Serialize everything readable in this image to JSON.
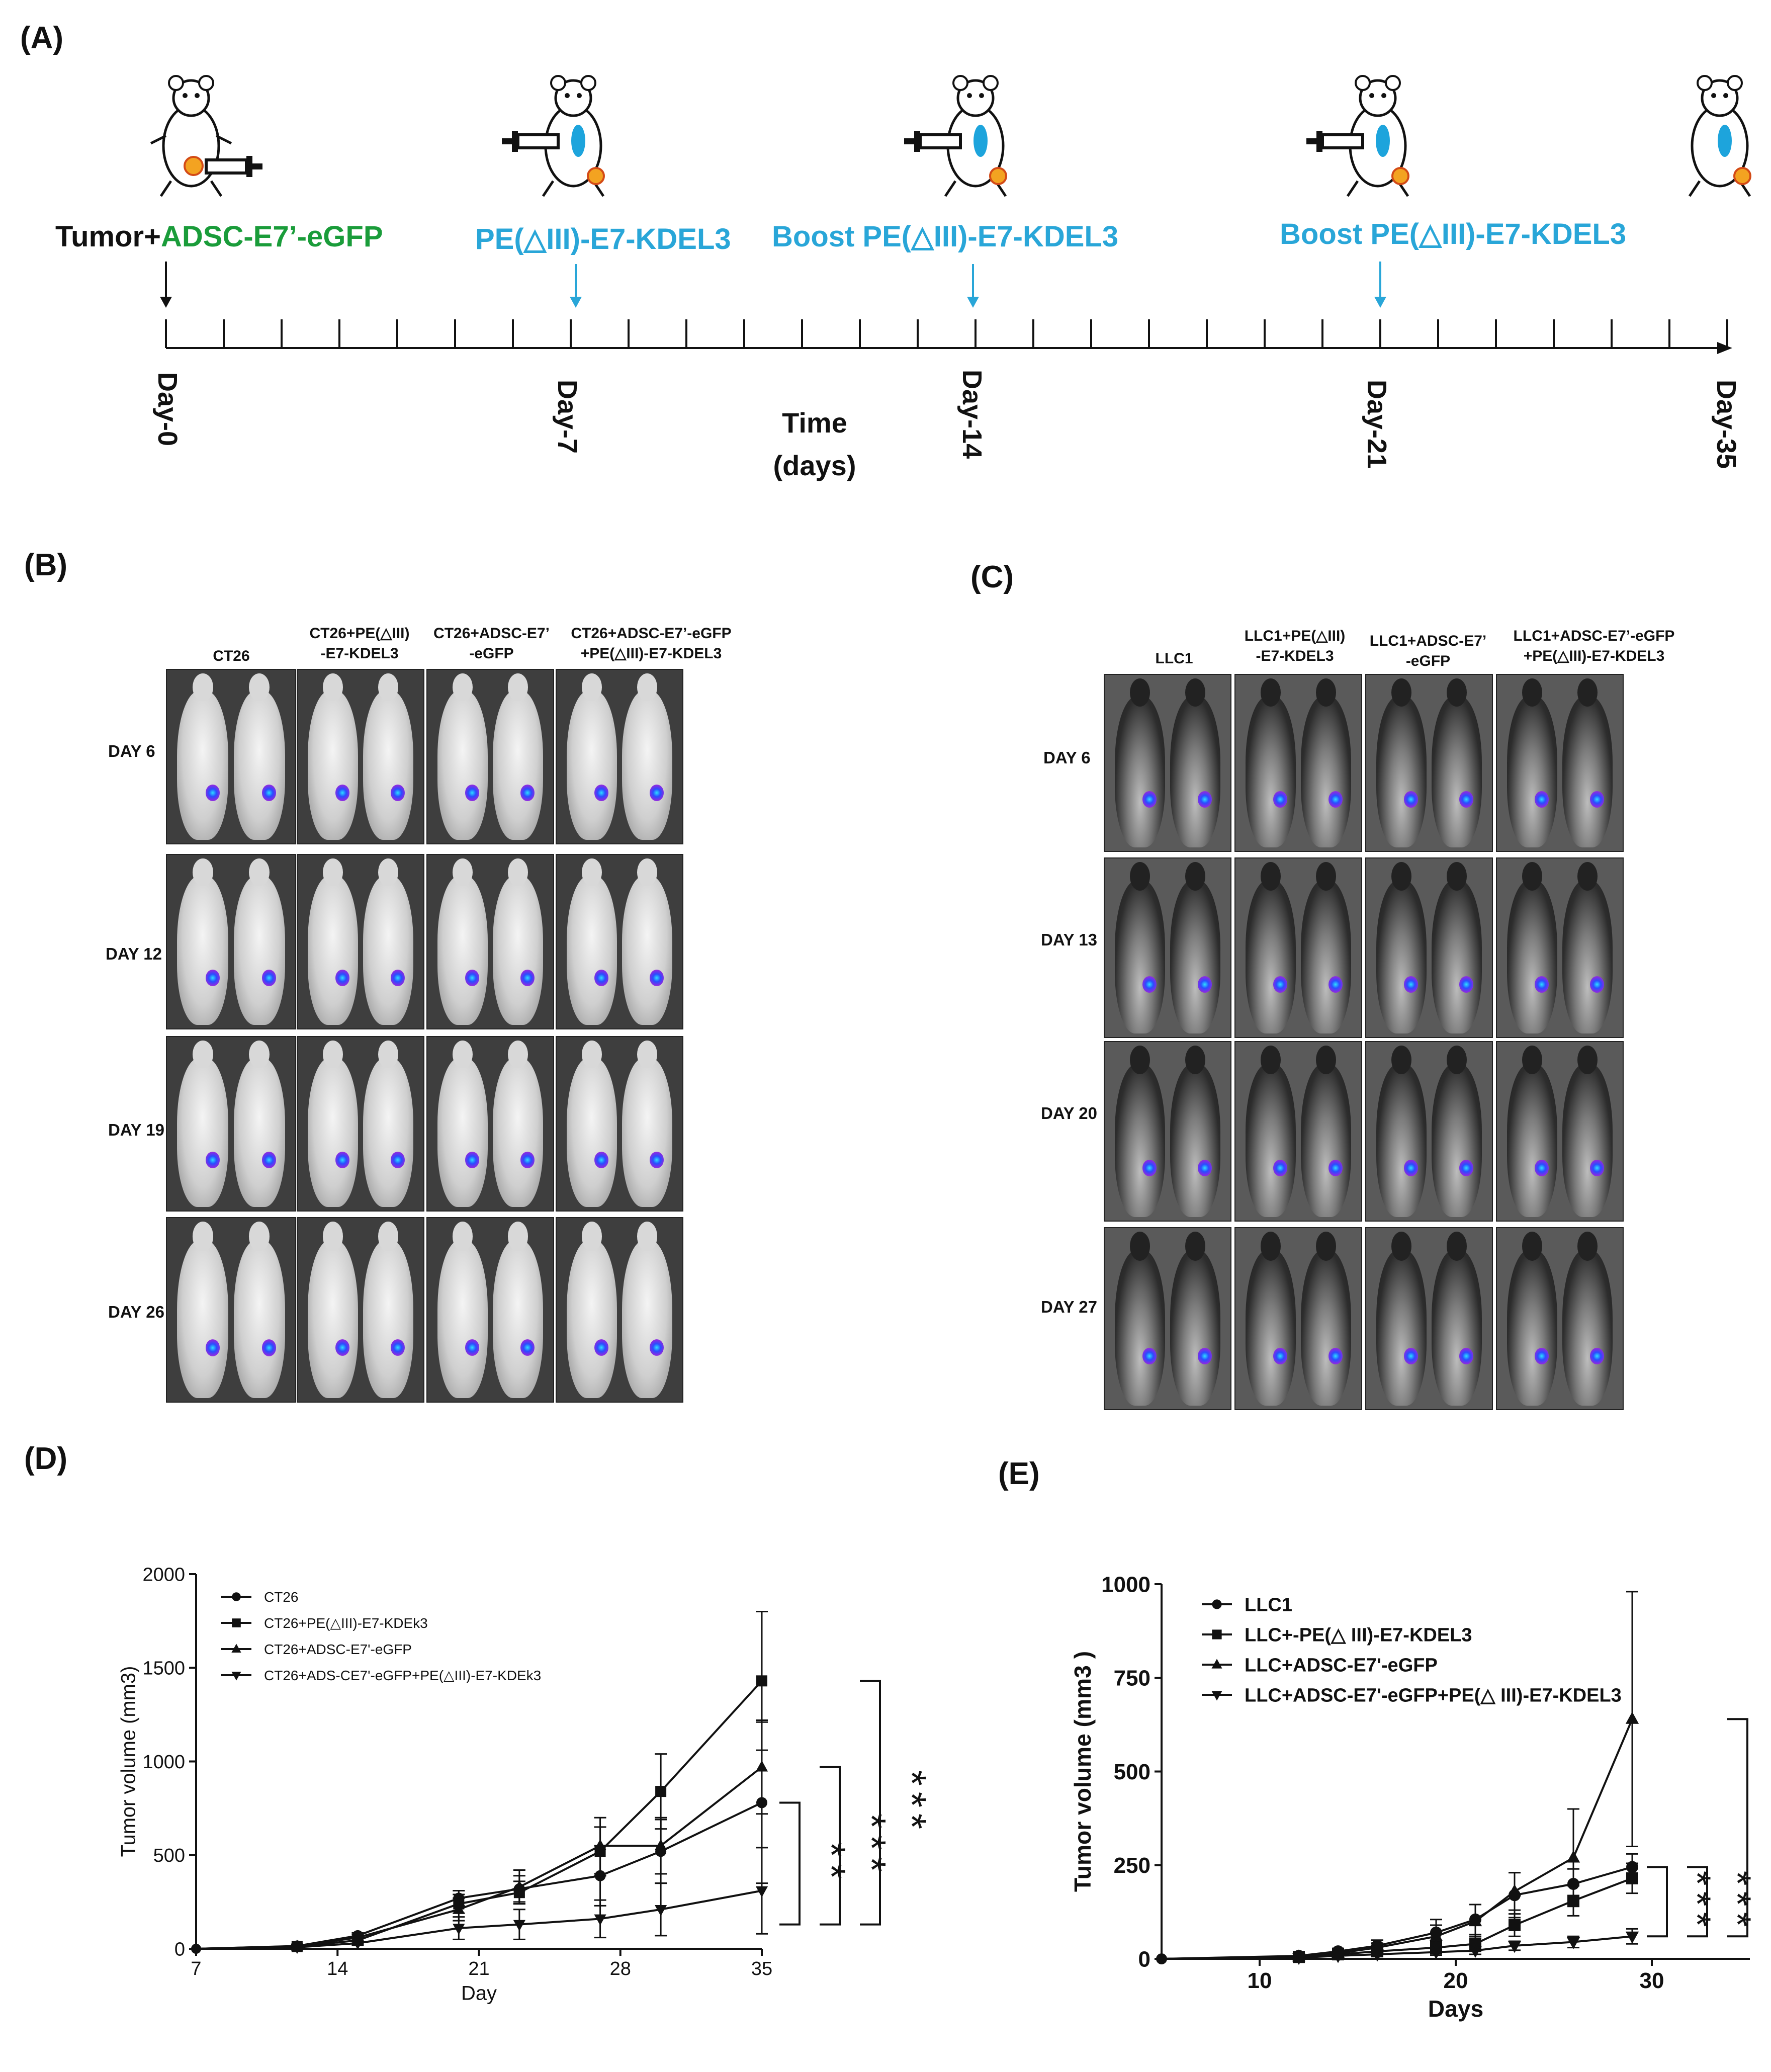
{
  "panel_labels": {
    "a": "(A)",
    "b": "(B)",
    "c": "(C)",
    "d": "(D)",
    "e": "(E)"
  },
  "timeline": {
    "tumor_label": "Tumor+",
    "adsc_label": "ADSC-E7’-eGFP",
    "treat_label": "PE(△III)-E7-KDEL3",
    "boost1_label": "Boost  PE(△III)-E7-KDEL3",
    "boost2_label": "Boost  PE(△III)-E7-KDEL3",
    "day_labels": [
      "Day-0",
      "Day-7",
      "Day-14",
      "Day-21",
      "Day-35"
    ],
    "axis_title_line1": "Time",
    "axis_title_line2": "(days)",
    "colors": {
      "black": "#111111",
      "green": "#1a9c3a",
      "blue": "#29a6d8"
    }
  },
  "panel_b": {
    "column_titles": [
      [
        "CT26"
      ],
      [
        "CT26+PE(△III)",
        "-E7-KDEL3"
      ],
      [
        "CT26+ADSC-E7’",
        "-eGFP"
      ],
      [
        "CT26+ADSC-E7’-eGFP",
        "+PE(△III)-E7-KDEL3"
      ]
    ],
    "row_labels": [
      "DAY 6",
      "DAY 12",
      "DAY 19",
      "DAY 26"
    ]
  },
  "panel_c": {
    "column_titles": [
      [
        "LLC1"
      ],
      [
        "LLC1+PE(△III)",
        "-E7-KDEL3"
      ],
      [
        "LLC1+ADSC-E7’",
        "-eGFP"
      ],
      [
        "LLC1+ADSC-E7’-eGFP",
        "+PE(△III)-E7-KDEL3"
      ]
    ],
    "row_labels": [
      "DAY 6",
      "DAY 13",
      "DAY 20",
      "DAY 27"
    ]
  },
  "chart_data": [
    {
      "type": "line",
      "panel": "D",
      "title": "",
      "xlabel": "Day",
      "ylabel": "Tumor volume (mm3)",
      "xlim": [
        7,
        35
      ],
      "ylim": [
        0,
        2000
      ],
      "xticks": [
        7,
        14,
        21,
        28,
        35
      ],
      "yticks": [
        0,
        500,
        1000,
        1500,
        2000
      ],
      "series": [
        {
          "name": "CT26",
          "marker": "circle",
          "x": [
            12,
            15,
            20,
            23,
            27,
            30,
            35
          ],
          "y": [
            15,
            70,
            270,
            320,
            390,
            520,
            780
          ],
          "err": [
            5,
            15,
            40,
            70,
            160,
            170,
            430
          ]
        },
        {
          "name": "CT26+PE(△III)-E7-KDEk3",
          "marker": "square",
          "x": [
            12,
            15,
            20,
            23,
            27,
            30,
            35
          ],
          "y": [
            12,
            45,
            240,
            300,
            520,
            840,
            1430
          ],
          "err": [
            5,
            15,
            50,
            60,
            130,
            200,
            370
          ]
        },
        {
          "name": "CT26+ADSC-E7'-eGFP",
          "marker": "triangle",
          "x": [
            12,
            15,
            20,
            23,
            27,
            30,
            35
          ],
          "y": [
            14,
            60,
            210,
            330,
            550,
            550,
            970
          ],
          "err": [
            5,
            15,
            60,
            90,
            150,
            150,
            250
          ]
        },
        {
          "name": "CT26+ADS-CE7'-eGFP+PE(△III)-E7-KDEk3",
          "marker": "triangle-down",
          "x": [
            12,
            15,
            20,
            23,
            27,
            30,
            35
          ],
          "y": [
            8,
            30,
            110,
            130,
            160,
            210,
            310
          ],
          "err": [
            5,
            10,
            60,
            80,
            100,
            140,
            230
          ]
        }
      ],
      "significance": [
        "**",
        "***",
        "***"
      ]
    },
    {
      "type": "line",
      "panel": "E",
      "title": "",
      "xlabel": "Days",
      "ylabel": "Tumor volume (mm3 )",
      "xlim": [
        5,
        35
      ],
      "ylim": [
        0,
        1000
      ],
      "xticks": [
        10,
        20,
        30
      ],
      "yticks": [
        0,
        250,
        500,
        750,
        1000
      ],
      "series": [
        {
          "name": "LLC1",
          "marker": "circle",
          "x": [
            12,
            14,
            16,
            19,
            21,
            23,
            26,
            29
          ],
          "y": [
            8,
            20,
            35,
            70,
            105,
            170,
            200,
            245
          ],
          "err": [
            3,
            8,
            15,
            35,
            40,
            60,
            40,
            35
          ]
        },
        {
          "name": "LLC+-PE(△ III)-E7-KDEL3",
          "marker": "square",
          "x": [
            12,
            14,
            16,
            19,
            21,
            23,
            26,
            29
          ],
          "y": [
            5,
            12,
            20,
            30,
            40,
            90,
            155,
            215
          ],
          "err": [
            3,
            5,
            10,
            15,
            20,
            30,
            40,
            40
          ]
        },
        {
          "name": "LLC+ADSC-E7'-eGFP",
          "marker": "triangle",
          "x": [
            12,
            14,
            16,
            19,
            21,
            23,
            26,
            29
          ],
          "y": [
            6,
            15,
            30,
            60,
            100,
            180,
            270,
            640
          ],
          "err": [
            3,
            8,
            12,
            30,
            45,
            50,
            130,
            340
          ]
        },
        {
          "name": "LLC+ADSC-E7'-eGFP+PE(△ III)-E7-KDEL3",
          "marker": "triangle-down",
          "x": [
            12,
            14,
            16,
            19,
            21,
            23,
            26,
            29
          ],
          "y": [
            3,
            8,
            12,
            18,
            22,
            35,
            45,
            60
          ],
          "err": [
            2,
            4,
            5,
            8,
            10,
            12,
            15,
            20
          ]
        }
      ],
      "significance": [
        "***",
        "***",
        "***"
      ]
    }
  ]
}
